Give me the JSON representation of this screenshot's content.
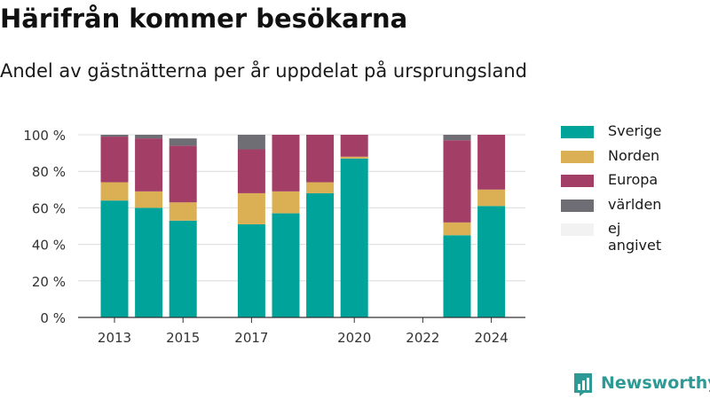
{
  "title": "Härifrån kommer besökarna",
  "subtitle": "Andel av gästnätterna per år uppdelat på ursprungsland",
  "brand": {
    "name": "Newsworthy",
    "icon": "newsworthy-logo-icon"
  },
  "chart_data": {
    "type": "bar",
    "stacked": true,
    "title": "Härifrån kommer besökarna",
    "subtitle": "Andel av gästnätterna per år uppdelat på ursprungsland",
    "xlabel": "",
    "ylabel": "",
    "ylim": [
      0,
      100
    ],
    "y_ticks": [
      0,
      20,
      40,
      60,
      80,
      100
    ],
    "y_tick_labels": [
      "0 %",
      "20 %",
      "40 %",
      "60 %",
      "80 %",
      "100 %"
    ],
    "x_tick_labels": [
      "2013",
      "2015",
      "2017",
      "2020",
      "2022",
      "2024"
    ],
    "categories": [
      2013,
      2014,
      2015,
      2016,
      2017,
      2018,
      2019,
      2020,
      2021,
      2022,
      2023,
      2024
    ],
    "grid": true,
    "legend_position": "right",
    "series": [
      {
        "name": "Sverige",
        "color": "#00a399",
        "values": [
          64,
          60,
          53,
          null,
          51,
          57,
          68,
          87,
          null,
          null,
          45,
          61
        ]
      },
      {
        "name": "Norden",
        "color": "#dbb054",
        "values": [
          10,
          9,
          10,
          null,
          17,
          12,
          6,
          1,
          null,
          null,
          7,
          9
        ]
      },
      {
        "name": "Europa",
        "color": "#a33e67",
        "values": [
          25,
          29,
          31,
          null,
          24,
          31,
          26,
          12,
          null,
          null,
          45,
          30
        ]
      },
      {
        "name": "världen",
        "color": "#6e6e74",
        "values": [
          1,
          2,
          4,
          null,
          8,
          0,
          0,
          0,
          null,
          null,
          3,
          0
        ]
      },
      {
        "name": "ej angivet",
        "color": "#f2f2f2",
        "values": [
          0,
          0,
          0,
          null,
          0,
          0,
          0,
          0,
          null,
          null,
          0,
          0
        ]
      }
    ]
  }
}
